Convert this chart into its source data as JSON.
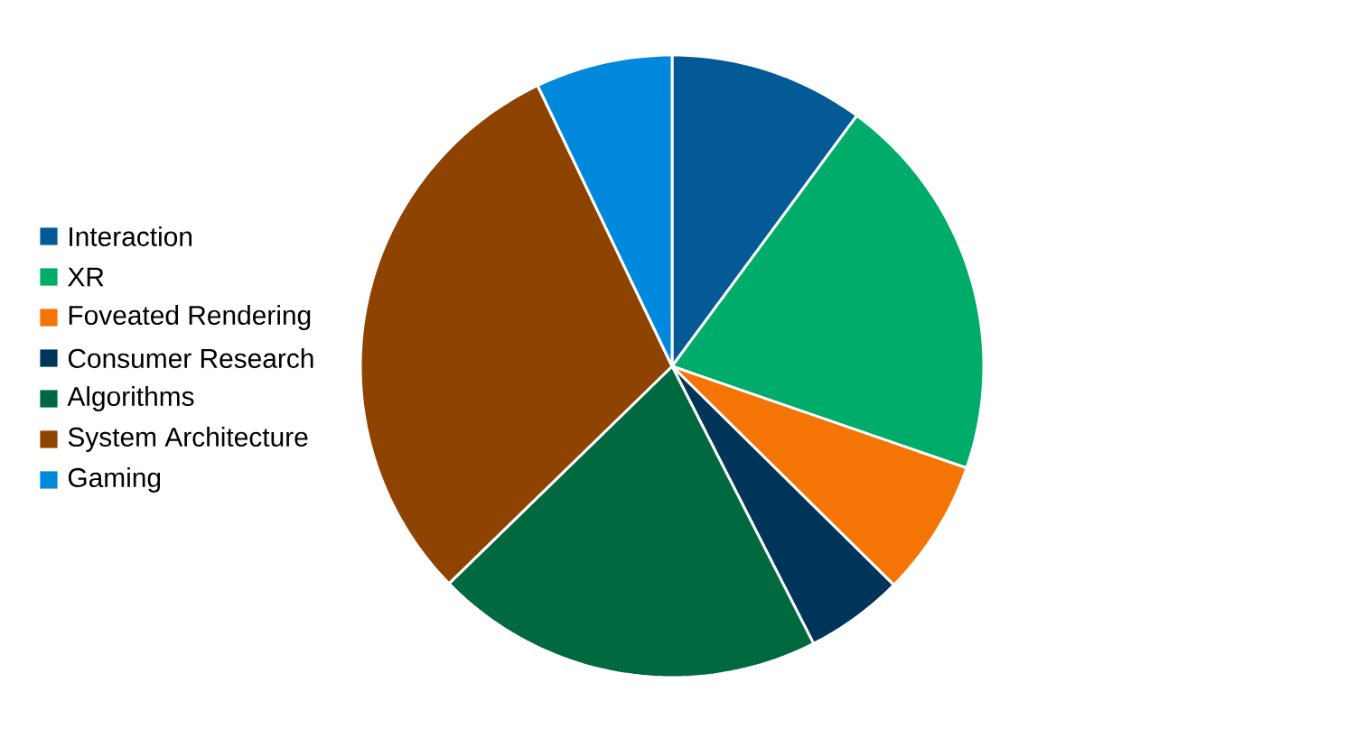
{
  "chart_data": {
    "type": "pie",
    "categories": [
      "Interaction",
      "XR",
      "Foveated Rendering",
      "Consumer Research",
      "Algorithms",
      "System Architecture",
      "Gaming"
    ],
    "values": [
      10.1,
      20.2,
      7.1,
      5.1,
      20.2,
      30.2,
      7.1
    ],
    "colors": [
      "#045a96",
      "#00ac69",
      "#f47505",
      "#003459",
      "#006940",
      "#8f4300",
      "#0088dd"
    ],
    "legend": "left"
  }
}
